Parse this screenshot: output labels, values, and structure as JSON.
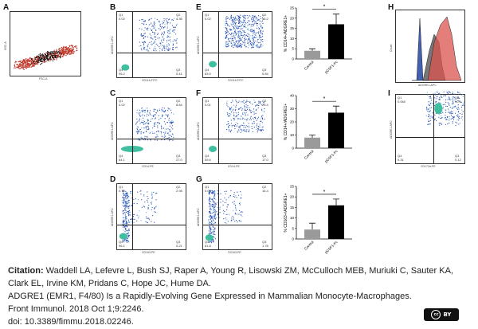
{
  "panels": {
    "A": {
      "letter": "A",
      "xlabel": "FSC-A",
      "ylabel": "SSC-A"
    },
    "B": {
      "letter": "B",
      "q": [
        "Q1",
        "Q2",
        "Q3",
        "Q4"
      ],
      "qv": [
        "0.02",
        "4.36",
        "0.41",
        "95.2"
      ],
      "xlabel": "CD11b-FITC",
      "ylabel": "ADGRE1-APC"
    },
    "C": {
      "letter": "C",
      "q": [
        "Q1",
        "Q2",
        "Q3",
        "Q4"
      ],
      "qv": [
        "0.02",
        "8.84",
        "27.0",
        "64.1"
      ],
      "xlabel": "CD14-PE",
      "ylabel": "ADGRE1-APC"
    },
    "D": {
      "letter": "D",
      "q": [
        "Q1",
        "Q2",
        "Q3",
        "Q4"
      ],
      "qv": [
        "0.70",
        "2.98",
        "0.21",
        "96.1"
      ],
      "xlabel": "CD163-PE",
      "ylabel": "ADGRE1-APC"
    },
    "E": {
      "letter": "E",
      "q": [
        "Q1",
        "Q2",
        "Q3",
        "Q4"
      ],
      "qv": [
        "0.02",
        "16.2",
        "0.84",
        "83.0"
      ],
      "xlabel": "CD11b-FITC",
      "ylabel": "ADGRE1-APC"
    },
    "F": {
      "letter": "F",
      "q": [
        "Q1",
        "Q2",
        "Q3",
        "Q4"
      ],
      "qv": [
        "0.01",
        "23.4",
        "17.0",
        "59.6"
      ],
      "xlabel": "CD14-PE",
      "ylabel": "ADGRE1-APC"
    },
    "G": {
      "letter": "G",
      "q": [
        "Q1",
        "Q2",
        "Q3",
        "Q4"
      ],
      "qv": [
        "0.04",
        "16.4",
        "1.78",
        "81.8"
      ],
      "xlabel": "CD163-PE",
      "ylabel": "ADGRE1-APC"
    },
    "H": {
      "letter": "H",
      "xlabel": "ADGRE1-APC",
      "ylabel": "Count"
    },
    "I": {
      "letter": "I",
      "q": [
        "Q1",
        "Q2",
        "Q3",
        "Q4"
      ],
      "qv": [
        "0.060",
        "90.5",
        "0.12",
        "9.31"
      ],
      "xlabel": "CD172a-PE",
      "ylabel": "ADGRE1-APC"
    }
  },
  "chart_data": [
    {
      "type": "bar",
      "categories": [
        "Control",
        "pCSF1-Fc"
      ],
      "values": [
        4,
        17
      ],
      "errors": [
        1,
        5
      ],
      "ylabel": "% CD14+/ADGRE1+",
      "ylim": [
        0,
        25
      ],
      "ticks": [
        0,
        5,
        10,
        15,
        20,
        25
      ],
      "significance": "*",
      "colors": [
        "#9a9a9a",
        "#000000"
      ]
    },
    {
      "type": "bar",
      "categories": [
        "Control",
        "pCSF1-Fc"
      ],
      "values": [
        8,
        27
      ],
      "errors": [
        2,
        5
      ],
      "ylabel": "% CD14+/ADGRE1+",
      "ylim": [
        0,
        40
      ],
      "ticks": [
        0,
        10,
        20,
        30,
        40
      ],
      "significance": "*",
      "colors": [
        "#9a9a9a",
        "#000000"
      ]
    },
    {
      "type": "bar",
      "categories": [
        "Control",
        "pCSF1-Fc"
      ],
      "values": [
        4.5,
        16
      ],
      "errors": [
        3,
        3
      ],
      "ylabel": "% CD163+/ADGRE1+",
      "ylim": [
        0,
        25
      ],
      "ticks": [
        0,
        5,
        10,
        15,
        20,
        25
      ],
      "significance": "*",
      "colors": [
        "#9a9a9a",
        "#000000"
      ]
    }
  ],
  "citation": {
    "label": "Citation:",
    "authors": " Waddell LA, Lefevre L, Bush SJ, Raper A, Young R, Lisowski ZM, McCulloch MEB, Muriuki C, Sauter KA, Clark EL, Irvine KM, Pridans C, Hope JC, Hume DA.",
    "title": "ADGRE1 (EMR1, F4/80) Is a Rapidly-Evolving Gene Expressed in Mammalian Monocyte-Macrophages.",
    "journal": "Front Immunol. 2018 Oct 1;9:2246.",
    "doi": "doi: 10.3389/fimmu.2018.02246."
  },
  "license": {
    "badge_left": "cc",
    "badge_right": "BY"
  }
}
